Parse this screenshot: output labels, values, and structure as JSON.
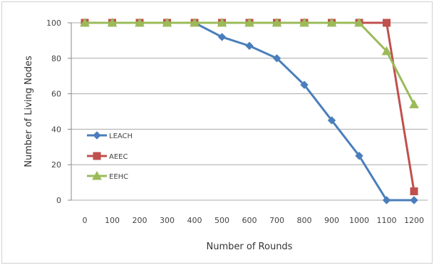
{
  "chart_data": {
    "type": "line",
    "title": "",
    "xlabel": "Number of Rounds",
    "ylabel": "Number of Living Nodes",
    "x": [
      0,
      100,
      200,
      300,
      400,
      500,
      600,
      700,
      800,
      900,
      1000,
      1100,
      1200
    ],
    "x_tick_labels": [
      "0",
      "100",
      "200",
      "300",
      "400",
      "500",
      "600",
      "700",
      "800",
      "900",
      "1000",
      "1100",
      "1200"
    ],
    "y_ticks": [
      0,
      20,
      40,
      60,
      80,
      100
    ],
    "ylim": [
      0,
      100
    ],
    "grid": "horizontal",
    "legend_position": "left-inside",
    "series": [
      {
        "name": "LEACH",
        "color": "#4a7ebb",
        "marker": "diamond",
        "values": [
          100,
          100,
          100,
          100,
          100,
          92,
          87,
          80,
          65,
          45,
          25,
          0,
          0
        ]
      },
      {
        "name": "AEEC",
        "color": "#c0504d",
        "marker": "square",
        "values": [
          100,
          100,
          100,
          100,
          100,
          100,
          100,
          100,
          100,
          100,
          100,
          100,
          5
        ]
      },
      {
        "name": "EEHC",
        "color": "#9bbb59",
        "marker": "triangle",
        "values": [
          100,
          100,
          100,
          100,
          100,
          100,
          100,
          100,
          100,
          100,
          100,
          84,
          54
        ]
      }
    ]
  }
}
